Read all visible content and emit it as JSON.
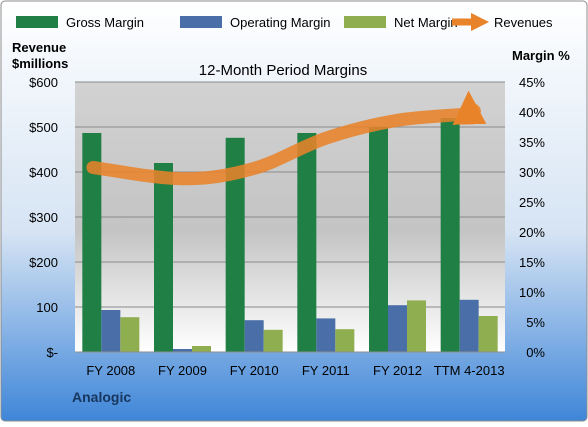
{
  "chart_data": {
    "type": "bar",
    "title": "12-Month Period Margins",
    "company": "Analogic",
    "left_axis": {
      "label_line1": "Revenue",
      "label_line2": "$millions",
      "range": [
        0,
        600
      ],
      "ticks": [
        0,
        100,
        200,
        300,
        400,
        500,
        600
      ],
      "tick_labels": [
        "$-",
        "100",
        "$200",
        "$300",
        "$400",
        "$500",
        "$600"
      ]
    },
    "right_axis": {
      "label": "Margin %",
      "range": [
        0,
        45
      ],
      "ticks": [
        0,
        5,
        10,
        15,
        20,
        25,
        30,
        35,
        40,
        45
      ],
      "tick_labels": [
        "0%",
        "5%",
        "10%",
        "15%",
        "20%",
        "25%",
        "30%",
        "35%",
        "40%",
        "45%"
      ]
    },
    "categories": [
      "FY 2008",
      "FY 2009",
      "FY 2010",
      "FY 2011",
      "FY 2012",
      "TTM 4-2013"
    ],
    "series": [
      {
        "name": "Gross Margin",
        "axis": "right",
        "color": "#1f7f45",
        "values": [
          36.5,
          31.5,
          35.7,
          36.5,
          37.5,
          39.0
        ]
      },
      {
        "name": "Operating Margin",
        "axis": "right",
        "color": "#4a6fa8",
        "values": [
          7.0,
          0.5,
          5.3,
          5.6,
          7.8,
          8.7
        ]
      },
      {
        "name": "Net Margin",
        "axis": "right",
        "color": "#8fae4f",
        "values": [
          5.8,
          1.0,
          3.7,
          3.8,
          8.6,
          6.0
        ]
      },
      {
        "name": "Revenues",
        "axis": "left",
        "type": "line",
        "color": "#e8832a",
        "values": [
          410,
          385,
          408,
          475,
          515,
          530
        ]
      }
    ],
    "grid": true,
    "legend_position": "top"
  }
}
